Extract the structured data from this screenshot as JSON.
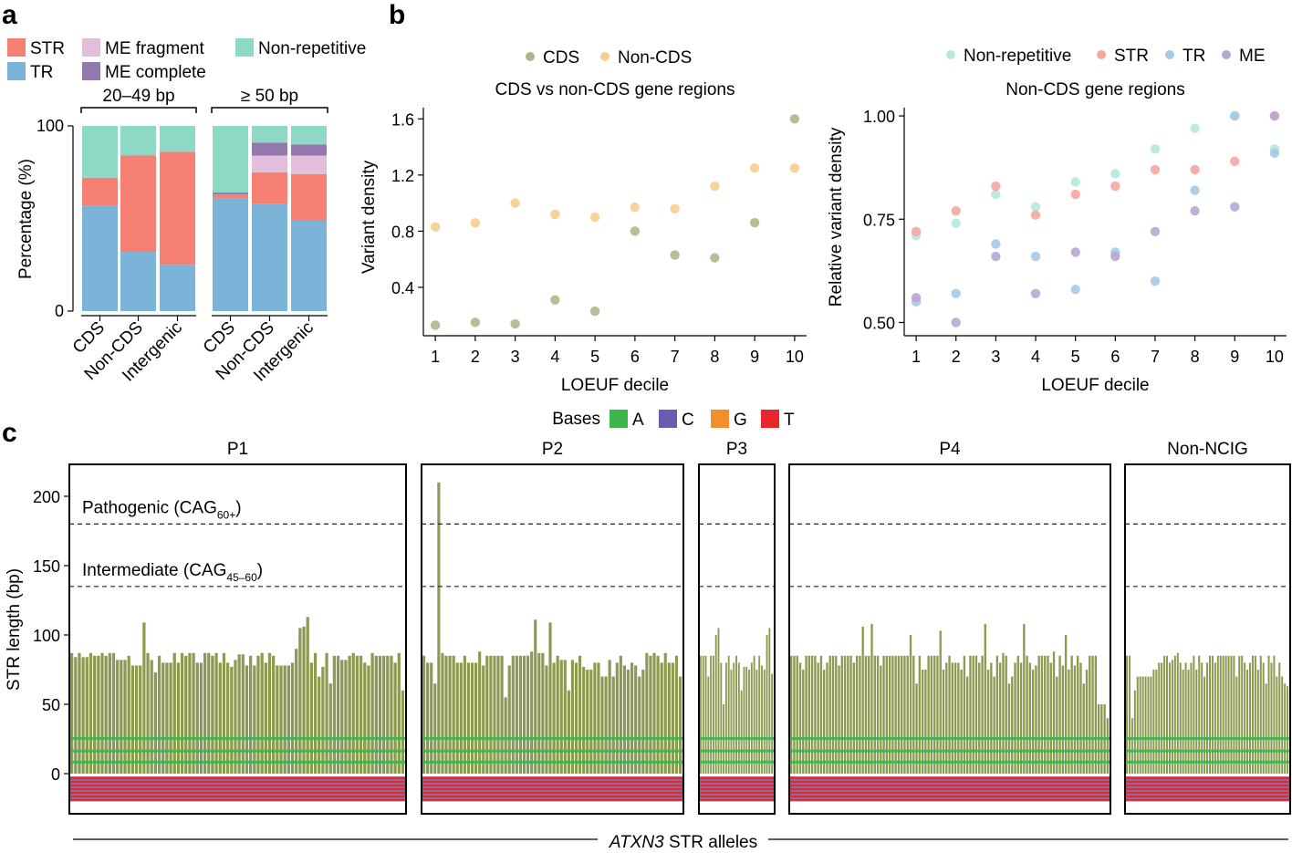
{
  "panels": {
    "a": "a",
    "b": "b",
    "c": "c"
  },
  "colors": {
    "STR": "#F47F72",
    "TR": "#7BB3D9",
    "ME fragment": "#E3BEDC",
    "ME complete": "#9479AE",
    "Non-repetitive": "#8ED8C6",
    "CDS": "#A9B98B",
    "Non-CDS": "#F7CE8E",
    "Non-repetitive_pt": "#B5E8DD",
    "STR_pt": "#F5A7A0",
    "TR_pt": "#A6C9E6",
    "ME_pt": "#B9A6D3",
    "A": "#3DB54A",
    "C": "#6A5DAF",
    "G": "#F28E2B",
    "T": "#E8262E"
  },
  "chart_data": [
    {
      "id": "a",
      "type": "bar",
      "stacked": true,
      "ylabel": "Percentage (%)",
      "yticks": [
        "0",
        "100"
      ],
      "ylim": [
        0,
        100
      ],
      "legend": [
        "STR",
        "ME fragment",
        "Non-repetitive",
        "TR",
        "ME complete"
      ],
      "groups": [
        {
          "title": "20–49 bp",
          "categories": [
            "CDS",
            "Non-CDS",
            "Intergenic"
          ]
        },
        {
          "title": "≥ 50 bp",
          "categories": [
            "CDS",
            "Non-CDS",
            "Intergenic"
          ]
        }
      ],
      "stack_order": [
        "TR",
        "STR",
        "ME fragment",
        "ME complete",
        "Non-repetitive"
      ],
      "series": [
        {
          "name": "TR",
          "values": [
            57,
            32,
            25,
            61,
            58,
            49
          ]
        },
        {
          "name": "STR",
          "values": [
            15,
            52,
            61,
            2,
            17,
            25
          ]
        },
        {
          "name": "ME fragment",
          "values": [
            0,
            0,
            0,
            0,
            9,
            10
          ]
        },
        {
          "name": "ME complete",
          "values": [
            0,
            0,
            0,
            1,
            7,
            6
          ]
        },
        {
          "name": "Non-repetitive",
          "values": [
            28,
            16,
            14,
            36,
            9,
            10
          ]
        }
      ]
    },
    {
      "id": "b1",
      "type": "scatter",
      "title": "CDS vs non-CDS gene regions",
      "xlabel": "LOEUF decile",
      "ylabel": "Variant density",
      "xlim": [
        0.7,
        10.3
      ],
      "ylim": [
        0.12,
        1.68
      ],
      "yticks": [
        0.4,
        0.8,
        1.2,
        1.6
      ],
      "ytick_labels": [
        "0.4",
        "0.8",
        "1.2",
        "1.6"
      ],
      "x": [
        1,
        2,
        3,
        4,
        5,
        6,
        7,
        8,
        9,
        10
      ],
      "x_labels": [
        "1",
        "2",
        "3",
        "4",
        "5",
        "6",
        "7",
        "8",
        "9",
        "10"
      ],
      "series": [
        {
          "name": "CDS",
          "values": [
            0.13,
            0.15,
            0.14,
            0.31,
            0.23,
            0.8,
            0.63,
            0.61,
            0.86,
            1.6
          ]
        },
        {
          "name": "Non-CDS",
          "values": [
            0.83,
            0.86,
            1.0,
            0.92,
            0.9,
            0.97,
            0.96,
            1.12,
            1.25,
            1.25
          ]
        }
      ]
    },
    {
      "id": "b2",
      "type": "scatter",
      "title": "Non-CDS gene regions",
      "xlabel": "LOEUF decile",
      "ylabel": "Relative variant density",
      "xlim": [
        0.7,
        10.3
      ],
      "ylim": [
        0.49,
        1.02
      ],
      "yticks": [
        0.5,
        0.75,
        1.0
      ],
      "ytick_labels": [
        "0.50",
        "0.75",
        "1.00"
      ],
      "x": [
        1,
        2,
        3,
        4,
        5,
        6,
        7,
        8,
        9,
        10
      ],
      "x_labels": [
        "1",
        "2",
        "3",
        "4",
        "5",
        "6",
        "7",
        "8",
        "9",
        "10"
      ],
      "series": [
        {
          "name": "Non-repetitive",
          "values": [
            0.71,
            0.74,
            0.81,
            0.78,
            0.84,
            0.86,
            0.92,
            0.97,
            1.0,
            0.92
          ]
        },
        {
          "name": "STR",
          "values": [
            0.72,
            0.77,
            0.83,
            0.76,
            0.81,
            0.83,
            0.87,
            0.87,
            0.89,
            1.0
          ]
        },
        {
          "name": "TR",
          "values": [
            0.55,
            0.57,
            0.69,
            0.66,
            0.58,
            0.67,
            0.6,
            0.82,
            1.0,
            0.91
          ]
        },
        {
          "name": "ME",
          "values": [
            0.56,
            0.5,
            0.66,
            0.57,
            0.67,
            0.66,
            0.72,
            0.77,
            0.78,
            1.0
          ]
        }
      ]
    },
    {
      "id": "c",
      "type": "bar",
      "xlabel_italic": "ATXN3",
      "xlabel_rest": " STR alleles",
      "ylabel": "STR length (bp)",
      "ylim": [
        -20,
        225
      ],
      "yticks": [
        0,
        50,
        100,
        150,
        200
      ],
      "ytick_labels": [
        "0",
        "50",
        "100",
        "150",
        "200"
      ],
      "legend_title": "Bases",
      "legend": [
        "A",
        "C",
        "G",
        "T"
      ],
      "thresholds": [
        {
          "value": 180,
          "label": "Pathogenic (CAG",
          "sub": "60+",
          "end": ")"
        },
        {
          "value": 135,
          "label": "Intermediate (CAG",
          "sub": "45–60",
          "end": ")"
        }
      ],
      "groups": [
        {
          "name": "P1",
          "values": [
            87,
            84,
            87,
            84,
            84,
            87,
            85,
            85,
            87,
            85,
            87,
            87,
            82,
            82,
            82,
            85,
            78,
            78,
            78,
            109,
            87,
            82,
            73,
            85,
            80,
            80,
            80,
            87,
            80,
            87,
            85,
            87,
            87,
            80,
            80,
            87,
            87,
            85,
            87,
            80,
            87,
            80,
            77,
            82,
            86,
            86,
            78,
            85,
            78,
            85,
            87,
            80,
            87,
            85,
            78,
            78,
            78,
            78,
            80,
            90,
            105,
            106,
            113,
            80,
            87,
            70,
            77,
            87,
            65,
            85,
            85,
            82,
            82,
            85,
            87,
            85,
            85,
            80,
            78,
            87,
            85,
            85,
            85,
            85,
            85,
            80,
            87,
            60
          ]
        },
        {
          "name": "P2",
          "values": [
            85,
            80,
            80,
            65,
            210,
            87,
            85,
            85,
            85,
            80,
            80,
            85,
            80,
            80,
            80,
            88,
            78,
            85,
            85,
            85,
            85,
            85,
            55,
            78,
            85,
            85,
            85,
            85,
            85,
            88,
            111,
            87,
            87,
            78,
            109,
            80,
            85,
            82,
            82,
            60,
            82,
            80,
            85,
            77,
            75,
            75,
            80,
            80,
            70,
            70,
            82,
            70,
            80,
            85,
            78,
            75,
            80,
            78,
            70,
            75,
            87,
            85,
            87,
            85,
            80,
            87,
            80,
            80,
            85,
            70
          ]
        },
        {
          "name": "P3",
          "values": [
            85,
            85,
            85,
            70,
            85,
            85,
            100,
            105,
            80,
            50,
            80,
            85,
            75,
            80,
            85,
            80,
            60,
            77,
            77,
            75,
            80,
            85,
            75,
            85,
            78,
            75,
            100,
            105,
            72
          ]
        },
        {
          "name": "P4",
          "values": [
            85,
            85,
            85,
            80,
            75,
            85,
            85,
            85,
            85,
            80,
            85,
            75,
            80,
            85,
            85,
            85,
            78,
            85,
            85,
            85,
            85,
            80,
            85,
            85,
            106,
            85,
            85,
            108,
            85,
            85,
            78,
            85,
            85,
            85,
            85,
            85,
            85,
            85,
            85,
            85,
            100,
            85,
            65,
            85,
            75,
            75,
            85,
            85,
            85,
            85,
            103,
            75,
            80,
            85,
            80,
            80,
            80,
            75,
            85,
            70,
            85,
            85,
            85,
            80,
            85,
            108,
            75,
            80,
            70,
            85,
            80,
            87,
            85,
            65,
            70,
            80,
            85,
            80,
            108,
            85,
            80,
            75,
            78,
            85,
            85,
            85,
            85,
            80,
            88,
            70,
            85,
            78,
            100,
            75,
            85,
            78,
            85,
            80,
            65,
            75,
            85,
            85,
            85,
            50,
            50,
            50,
            40
          ]
        },
        {
          "name": "Non-NCIG",
          "values": [
            85,
            85,
            40,
            60,
            70,
            70,
            70,
            70,
            70,
            70,
            75,
            75,
            80,
            80,
            85,
            85,
            80,
            82,
            85,
            87,
            80,
            75,
            80,
            75,
            80,
            85,
            75,
            85,
            80,
            70,
            80,
            85,
            85,
            80,
            85,
            85,
            85,
            85,
            85,
            85,
            85,
            70,
            85,
            85,
            80,
            75,
            80,
            85,
            85,
            75,
            85,
            80,
            65,
            85,
            80,
            85,
            70,
            80,
            70,
            65,
            63
          ]
        }
      ]
    }
  ]
}
